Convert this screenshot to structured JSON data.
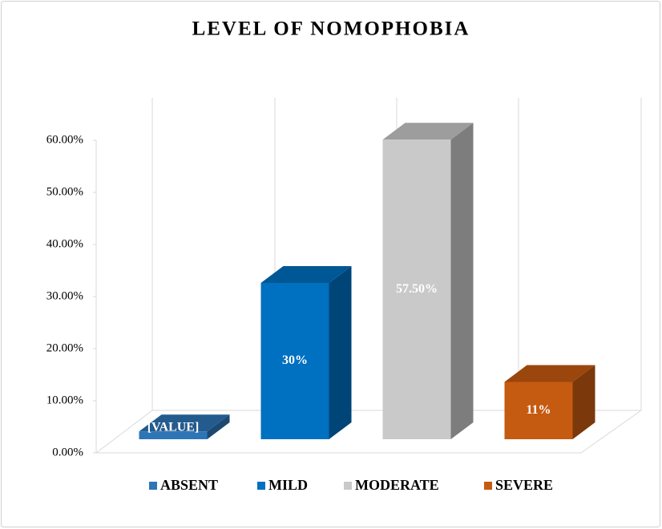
{
  "chart_data": {
    "type": "bar3d",
    "title": "LEVEL OF NOMOPHOBIA",
    "categories": [
      "ABSENT",
      "MILD",
      "MODERATE",
      "SEVERE"
    ],
    "values": [
      1.5,
      30,
      57.5,
      11
    ],
    "value_labels": [
      "[VALUE]",
      "30%",
      "57.50%",
      "11%"
    ],
    "colors": [
      "#2e75b6",
      "#0070c0",
      "#c9c9c9",
      "#c55a11"
    ],
    "ylim": [
      0,
      60
    ],
    "yticks": [
      {
        "value": 0,
        "label": "0.00%"
      },
      {
        "value": 10,
        "label": "10.00%"
      },
      {
        "value": 20,
        "label": "20.00%"
      },
      {
        "value": 30,
        "label": "30.00%"
      },
      {
        "value": 40,
        "label": "40.00%"
      },
      {
        "value": 50,
        "label": "50.00%"
      },
      {
        "value": 60,
        "label": "60.00%"
      }
    ],
    "grid": false,
    "legend": "bottom"
  }
}
